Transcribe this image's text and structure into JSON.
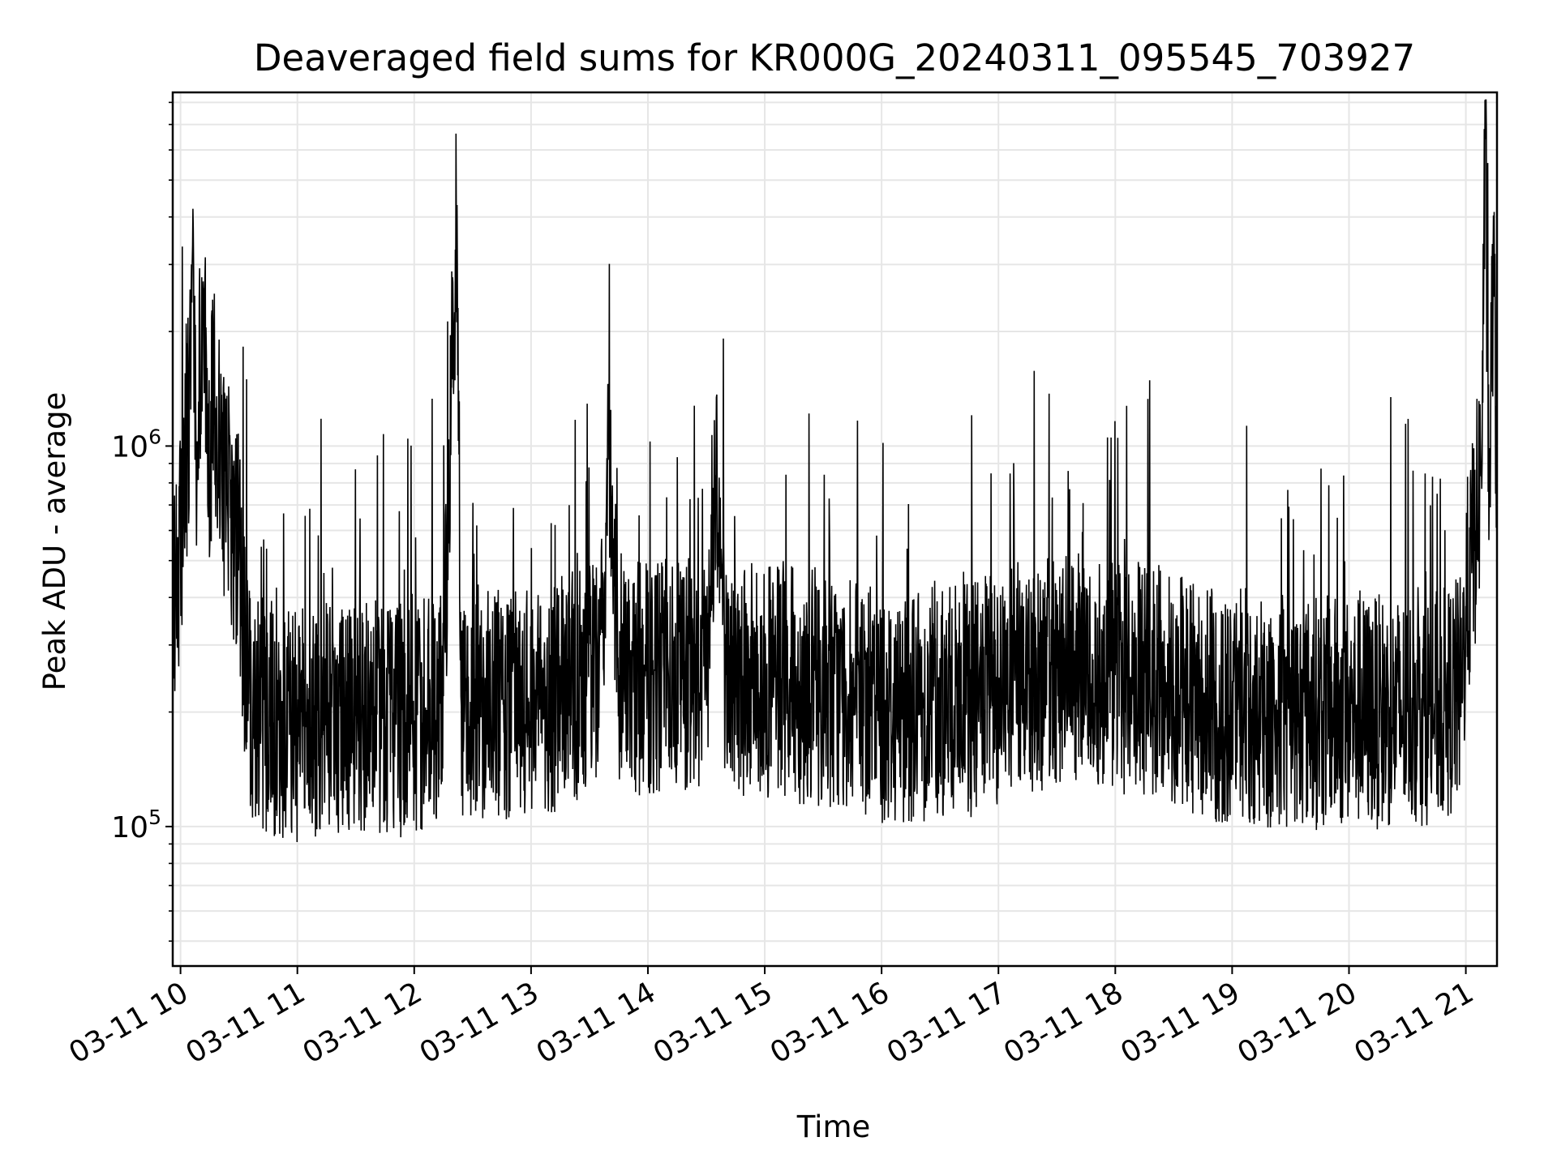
{
  "chart_data": {
    "type": "line",
    "title": "Deaveraged field sums for KR000G_20240311_095545_703927",
    "xlabel": "Time",
    "ylabel": "Peak ADU - average",
    "y_scale": "log",
    "ylim": [
      43000,
      8500000
    ],
    "y_ticks": [
      {
        "value": 100000,
        "base": "10",
        "exp": "5"
      },
      {
        "value": 1000000,
        "base": "10",
        "exp": "6"
      }
    ],
    "xlim": [
      "2024-03-11 09:56",
      "2024-03-11 21:16"
    ],
    "x_ticks": [
      {
        "value": "2024-03-11 10:00",
        "label": "03-11 10"
      },
      {
        "value": "2024-03-11 11:00",
        "label": "03-11 11"
      },
      {
        "value": "2024-03-11 12:00",
        "label": "03-11 12"
      },
      {
        "value": "2024-03-11 13:00",
        "label": "03-11 13"
      },
      {
        "value": "2024-03-11 14:00",
        "label": "03-11 14"
      },
      {
        "value": "2024-03-11 15:00",
        "label": "03-11 15"
      },
      {
        "value": "2024-03-11 16:00",
        "label": "03-11 16"
      },
      {
        "value": "2024-03-11 17:00",
        "label": "03-11 17"
      },
      {
        "value": "2024-03-11 18:00",
        "label": "03-11 18"
      },
      {
        "value": "2024-03-11 19:00",
        "label": "03-11 19"
      },
      {
        "value": "2024-03-11 20:00",
        "label": "03-11 20"
      },
      {
        "value": "2024-03-11 21:00",
        "label": "03-11 21"
      }
    ],
    "grid": true,
    "grid_color": "#e6e6e6",
    "line_color": "#000000",
    "series": [
      {
        "x": [
          "2024-03-11 09:56",
          "2024-03-11 10:00",
          "2024-03-11 10:04",
          "2024-03-11 10:06",
          "2024-03-11 10:08",
          "2024-03-11 10:12",
          "2024-03-11 10:14",
          "2024-03-11 10:17",
          "2024-03-11 10:20",
          "2024-03-11 10:24",
          "2024-03-11 10:30",
          "2024-03-11 10:35",
          "2024-03-11 10:40",
          "2024-03-11 10:50",
          "2024-03-11 11:00",
          "2024-03-11 11:30",
          "2024-03-11 12:00",
          "2024-03-11 12:15",
          "2024-03-11 12:22",
          "2024-03-11 12:23",
          "2024-03-11 12:24",
          "2024-03-11 12:26",
          "2024-03-11 12:35",
          "2024-03-11 13:00",
          "2024-03-11 13:35",
          "2024-03-11 13:40",
          "2024-03-11 13:45",
          "2024-03-11 14:00",
          "2024-03-11 14:30",
          "2024-03-11 14:35",
          "2024-03-11 14:40",
          "2024-03-11 15:00",
          "2024-03-11 15:30",
          "2024-03-11 16:00",
          "2024-03-11 16:20",
          "2024-03-11 16:45",
          "2024-03-11 17:00",
          "2024-03-11 17:30",
          "2024-03-11 18:00",
          "2024-03-11 18:30",
          "2024-03-11 19:00",
          "2024-03-11 19:30",
          "2024-03-11 20:00",
          "2024-03-11 20:30",
          "2024-03-11 20:50",
          "2024-03-11 20:58",
          "2024-03-11 21:00",
          "2024-03-11 21:05",
          "2024-03-11 21:08",
          "2024-03-11 21:10",
          "2024-03-11 21:12",
          "2024-03-11 21:14",
          "2024-03-11 21:16"
        ],
        "y": [
          350000,
          550000,
          1100000,
          3000000,
          900000,
          2600000,
          700000,
          1400000,
          950000,
          700000,
          550000,
          210000,
          200000,
          190000,
          185000,
          195000,
          190000,
          220000,
          4300000,
          950000,
          220000,
          210000,
          210000,
          205000,
          250000,
          920000,
          250000,
          245000,
          260000,
          980000,
          250000,
          240000,
          230000,
          205000,
          210000,
          215000,
          230000,
          260000,
          250000,
          235000,
          195000,
          200000,
          200000,
          200000,
          210000,
          230000,
          380000,
          600000,
          900000,
          6400000,
          700000,
          3100000,
          800000
        ]
      }
    ]
  }
}
